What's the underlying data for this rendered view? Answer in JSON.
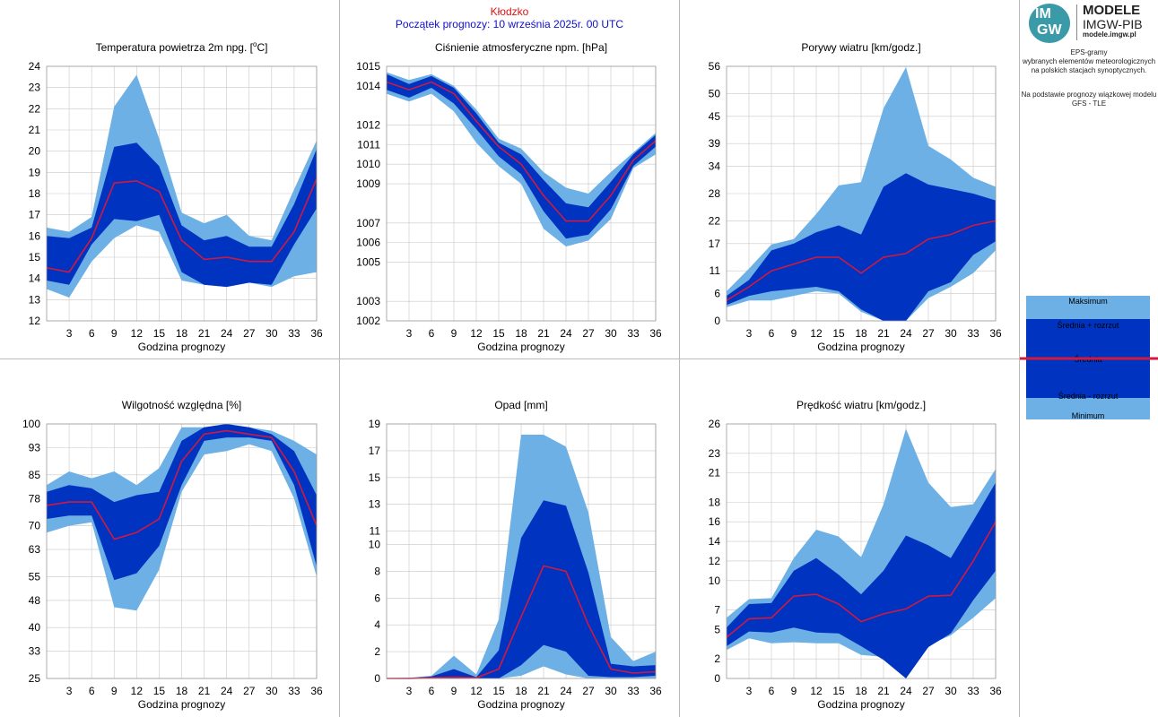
{
  "header": {
    "station": "Kłodzko",
    "forecast_start": "Początek prognozy: 10 września 2025r. 00 UTC"
  },
  "logo": {
    "mark_top": "IM",
    "mark_bottom": "GW",
    "title": "MODELE",
    "subtitle": "IMGW-PIB",
    "website": "modele.imgw.pl"
  },
  "description": {
    "line1": "EPS-gramy",
    "line2": "wybranych elementów meteorologicznych",
    "line3": "na polskich stacjach  synoptycznych.",
    "line4": "Na podstawie prognozy wiązkowej modelu",
    "line5": "GFS - TLE"
  },
  "legend": {
    "max": "Maksimum",
    "mean_plus": "Średnia + rozrzut",
    "mean": "Średnia",
    "mean_minus": "Średnia - rozrzut",
    "min": "Minimum"
  },
  "colors": {
    "outer_band": "#6cb0e6",
    "inner_band": "#0034c0",
    "mean_line": "#d01840",
    "grid": "#c8c8c8",
    "frame": "#bbbbbb"
  },
  "chart_data": [
    {
      "id": "temperature",
      "type": "area",
      "title": "Temperatura powietrza 2m npg. [°C]",
      "title_main": "Temperatura powietrza 2m npg. [",
      "title_sup": "o",
      "title_end": "C]",
      "xlabel": "Godzina prognozy",
      "x": [
        0,
        3,
        6,
        9,
        12,
        15,
        18,
        21,
        24,
        27,
        30,
        33,
        36
      ],
      "xticks": [
        3,
        6,
        9,
        12,
        15,
        18,
        21,
        24,
        27,
        30,
        33,
        36
      ],
      "ylim": [
        12,
        24
      ],
      "yticks": [
        12,
        13,
        14,
        15,
        16,
        17,
        18,
        19,
        20,
        21,
        22,
        23,
        24
      ],
      "ytick_labels": [
        "12",
        "13",
        "14",
        "15",
        "16",
        "17",
        "18",
        "19",
        "20",
        "21",
        "22",
        "23",
        "24"
      ],
      "series": [
        {
          "name": "Maksimum",
          "values": [
            16.4,
            16.2,
            16.9,
            22.1,
            23.6,
            20.6,
            17.1,
            16.6,
            17.0,
            16.0,
            15.8,
            18.2,
            20.5
          ]
        },
        {
          "name": "Średnia + rozrzut",
          "values": [
            16.0,
            15.9,
            16.4,
            20.2,
            20.4,
            19.3,
            16.5,
            15.8,
            16.0,
            15.5,
            15.5,
            17.5,
            20.1
          ]
        },
        {
          "name": "Średnia",
          "values": [
            14.5,
            14.3,
            15.9,
            18.5,
            18.6,
            18.1,
            15.8,
            14.9,
            15.0,
            14.8,
            14.8,
            16.2,
            18.7
          ]
        },
        {
          "name": "Średnia - rozrzut",
          "values": [
            13.9,
            13.7,
            15.6,
            16.8,
            16.7,
            17.0,
            14.3,
            13.7,
            13.6,
            13.8,
            13.7,
            15.6,
            17.3
          ]
        },
        {
          "name": "Minimum",
          "values": [
            13.5,
            13.1,
            14.8,
            15.9,
            16.5,
            16.2,
            13.9,
            13.7,
            13.6,
            13.8,
            13.6,
            14.1,
            14.3
          ]
        }
      ]
    },
    {
      "id": "pressure",
      "type": "area",
      "title": "Ciśnienie atmosferyczne npm. [hPa]",
      "xlabel": "Godzina prognozy",
      "x": [
        0,
        3,
        6,
        9,
        12,
        15,
        18,
        21,
        24,
        27,
        30,
        33,
        36
      ],
      "xticks": [
        3,
        6,
        9,
        12,
        15,
        18,
        21,
        24,
        27,
        30,
        33,
        36
      ],
      "ylim": [
        1002,
        1015
      ],
      "yticks": [
        1002,
        1003,
        1005,
        1006,
        1007,
        1009,
        1010,
        1011,
        1012,
        1014,
        1015
      ],
      "ytick_labels": [
        "1002",
        "1003",
        "1005",
        "1006",
        "1007",
        "1009",
        "1010",
        "1011",
        "1012",
        "1014",
        "1015"
      ],
      "series": [
        {
          "name": "Maksimum",
          "values": [
            1014.7,
            1014.3,
            1014.6,
            1014.0,
            1012.8,
            1011.3,
            1010.8,
            1009.6,
            1008.8,
            1008.5,
            1009.6,
            1010.6,
            1011.6
          ]
        },
        {
          "name": "Średnia + rozrzut",
          "values": [
            1014.6,
            1014.1,
            1014.5,
            1013.9,
            1012.6,
            1011.1,
            1010.5,
            1009.2,
            1008.0,
            1007.8,
            1009.1,
            1010.5,
            1011.5
          ]
        },
        {
          "name": "Średnia",
          "values": [
            1014.2,
            1013.8,
            1014.2,
            1013.6,
            1012.2,
            1010.9,
            1010.0,
            1008.4,
            1007.1,
            1007.1,
            1008.4,
            1010.2,
            1011.2
          ]
        },
        {
          "name": "Średnia - rozrzut",
          "values": [
            1013.8,
            1013.4,
            1013.9,
            1013.1,
            1011.8,
            1010.4,
            1009.5,
            1007.6,
            1006.2,
            1006.4,
            1007.7,
            1009.9,
            1010.9
          ]
        },
        {
          "name": "Minimum",
          "values": [
            1013.6,
            1013.2,
            1013.6,
            1012.7,
            1011.1,
            1009.9,
            1009.0,
            1006.7,
            1005.8,
            1006.1,
            1007.2,
            1009.8,
            1010.5
          ]
        }
      ]
    },
    {
      "id": "gusts",
      "type": "area",
      "title": "Porywy wiatru [km/godz.]",
      "xlabel": "Godzina prognozy",
      "x": [
        0,
        3,
        6,
        9,
        12,
        15,
        18,
        21,
        24,
        27,
        30,
        33,
        36
      ],
      "xticks": [
        3,
        6,
        9,
        12,
        15,
        18,
        21,
        24,
        27,
        30,
        33,
        36
      ],
      "ylim": [
        0,
        56
      ],
      "yticks": [
        0,
        6,
        11,
        17,
        22,
        28,
        34,
        39,
        45,
        50,
        56
      ],
      "ytick_labels": [
        "0",
        "6",
        "11",
        "17",
        "22",
        "28",
        "34",
        "39",
        "45",
        "50",
        "56"
      ],
      "series": [
        {
          "name": "Maksimum",
          "values": [
            6.5,
            11.5,
            16.8,
            18.0,
            23.5,
            29.8,
            30.5,
            46.8,
            55.8,
            38.5,
            35.5,
            31.5,
            29.5
          ]
        },
        {
          "name": "Średnia + rozrzut",
          "values": [
            5.5,
            9.0,
            15.5,
            17.0,
            19.5,
            21.0,
            19.0,
            29.5,
            32.5,
            30.0,
            29.0,
            28.0,
            26.5
          ]
        },
        {
          "name": "Średnia",
          "values": [
            4.5,
            7.5,
            11.0,
            12.5,
            14.0,
            14.0,
            10.5,
            14.0,
            14.8,
            18.0,
            19.0,
            21.0,
            22.0
          ]
        },
        {
          "name": "Średnia - rozrzut",
          "values": [
            3.5,
            5.5,
            6.5,
            7.0,
            7.5,
            6.5,
            2.5,
            0.0,
            0.0,
            6.5,
            8.5,
            14.5,
            17.5
          ]
        },
        {
          "name": "Minimum",
          "values": [
            3.0,
            4.5,
            4.5,
            5.5,
            6.5,
            6.0,
            2.0,
            0.0,
            0.0,
            5.0,
            7.5,
            10.5,
            15.5
          ]
        }
      ]
    },
    {
      "id": "humidity",
      "type": "area",
      "title": "Wilgotność względna [%]",
      "xlabel": "Godzina prognozy",
      "x": [
        0,
        3,
        6,
        9,
        12,
        15,
        18,
        21,
        24,
        27,
        30,
        33,
        36
      ],
      "xticks": [
        3,
        6,
        9,
        12,
        15,
        18,
        21,
        24,
        27,
        30,
        33,
        36
      ],
      "ylim": [
        25,
        100
      ],
      "yticks": [
        25,
        33,
        40,
        48,
        55,
        63,
        70,
        78,
        85,
        93,
        100
      ],
      "ytick_labels": [
        "25",
        "33",
        "40",
        "48",
        "55",
        "63",
        "70",
        "78",
        "85",
        "93",
        "100"
      ],
      "series": [
        {
          "name": "Maksimum",
          "values": [
            82,
            86,
            84,
            86,
            82,
            87,
            99,
            99,
            99,
            99,
            98,
            95,
            91
          ]
        },
        {
          "name": "Średnia + rozrzut",
          "values": [
            80,
            82,
            81,
            77,
            79,
            80,
            95,
            99,
            100,
            99,
            97,
            92,
            79
          ]
        },
        {
          "name": "Średnia",
          "values": [
            76,
            77,
            77,
            66,
            68,
            72,
            89,
            97,
            98,
            97,
            96,
            86,
            70
          ]
        },
        {
          "name": "Średnia - rozrzut",
          "values": [
            72,
            73,
            73,
            54,
            56,
            64,
            82,
            95,
            96,
            96,
            95,
            82,
            58
          ]
        },
        {
          "name": "Minimum",
          "values": [
            68,
            70,
            71,
            46,
            45,
            57,
            80,
            91,
            92,
            94,
            92,
            78,
            55
          ]
        }
      ]
    },
    {
      "id": "precipitation",
      "type": "area",
      "title": "Opad [mm]",
      "xlabel": "Godzina prognozy",
      "x": [
        0,
        3,
        6,
        9,
        12,
        15,
        18,
        21,
        24,
        27,
        30,
        33,
        36
      ],
      "xticks": [
        3,
        6,
        9,
        12,
        15,
        18,
        21,
        24,
        27,
        30,
        33,
        36
      ],
      "ylim": [
        0,
        19
      ],
      "yticks": [
        0,
        2,
        4,
        6,
        8,
        10,
        11,
        13,
        15,
        17,
        19
      ],
      "ytick_labels": [
        "0",
        "2",
        "4",
        "6",
        "8",
        "10",
        "11",
        "13",
        "15",
        "17",
        "19"
      ],
      "series": [
        {
          "name": "Maksimum",
          "values": [
            0,
            0.05,
            0.2,
            1.7,
            0.3,
            4.4,
            18.2,
            18.2,
            17.3,
            12.4,
            3.1,
            1.3,
            2.0
          ]
        },
        {
          "name": "Średnia + rozrzut",
          "values": [
            0,
            0.03,
            0.15,
            0.7,
            0.1,
            2.1,
            10.5,
            13.3,
            12.9,
            7.9,
            1.1,
            0.9,
            1.0
          ]
        },
        {
          "name": "Średnia",
          "values": [
            0,
            0.01,
            0.05,
            0.1,
            0.05,
            0.7,
            4.6,
            8.4,
            8.0,
            4.0,
            0.7,
            0.4,
            0.5
          ]
        },
        {
          "name": "Średnia - rozrzut",
          "values": [
            0,
            0,
            0,
            0,
            0,
            0,
            1.0,
            2.5,
            2.0,
            0.2,
            0.1,
            0.1,
            0.2
          ]
        },
        {
          "name": "Minimum",
          "values": [
            0,
            0,
            0,
            0,
            0,
            0,
            0.2,
            0.9,
            0.3,
            0.0,
            0.0,
            0.0,
            0.0
          ]
        }
      ]
    },
    {
      "id": "wind_speed",
      "type": "area",
      "title": "Prędkość wiatru [km/godz.]",
      "xlabel": "Godzina prognozy",
      "x": [
        0,
        3,
        6,
        9,
        12,
        15,
        18,
        21,
        24,
        27,
        30,
        33,
        36
      ],
      "xticks": [
        3,
        6,
        9,
        12,
        15,
        18,
        21,
        24,
        27,
        30,
        33,
        36
      ],
      "ylim": [
        0,
        26
      ],
      "yticks": [
        0,
        2,
        5,
        7,
        10,
        12,
        14,
        16,
        18,
        21,
        23,
        26
      ],
      "ytick_labels": [
        "0",
        "2",
        "5",
        "7",
        "10",
        "12",
        "14",
        "16",
        "18",
        "21",
        "23",
        "26"
      ],
      "series": [
        {
          "name": "Maksimum",
          "values": [
            6.2,
            8.1,
            8.2,
            12.3,
            15.2,
            14.5,
            12.4,
            17.8,
            25.5,
            20.0,
            17.5,
            17.8,
            21.4
          ]
        },
        {
          "name": "Średnia + rozrzut",
          "values": [
            5.2,
            7.6,
            7.7,
            11.0,
            12.3,
            10.6,
            8.6,
            11.0,
            14.6,
            13.6,
            12.3,
            16.1,
            20.0
          ]
        },
        {
          "name": "Średnia",
          "values": [
            4.2,
            6.1,
            6.2,
            8.4,
            8.6,
            7.6,
            5.8,
            6.6,
            7.1,
            8.4,
            8.5,
            12.0,
            16.0
          ]
        },
        {
          "name": "Średnia - rozrzut",
          "values": [
            3.3,
            4.8,
            4.7,
            5.2,
            4.7,
            4.6,
            3.3,
            1.9,
            0.0,
            3.2,
            4.6,
            8.0,
            11.0
          ]
        },
        {
          "name": "Minimum",
          "values": [
            2.9,
            4.1,
            3.6,
            3.7,
            3.6,
            3.6,
            2.4,
            2.2,
            0.0,
            3.4,
            4.4,
            6.2,
            8.2
          ]
        }
      ]
    }
  ]
}
